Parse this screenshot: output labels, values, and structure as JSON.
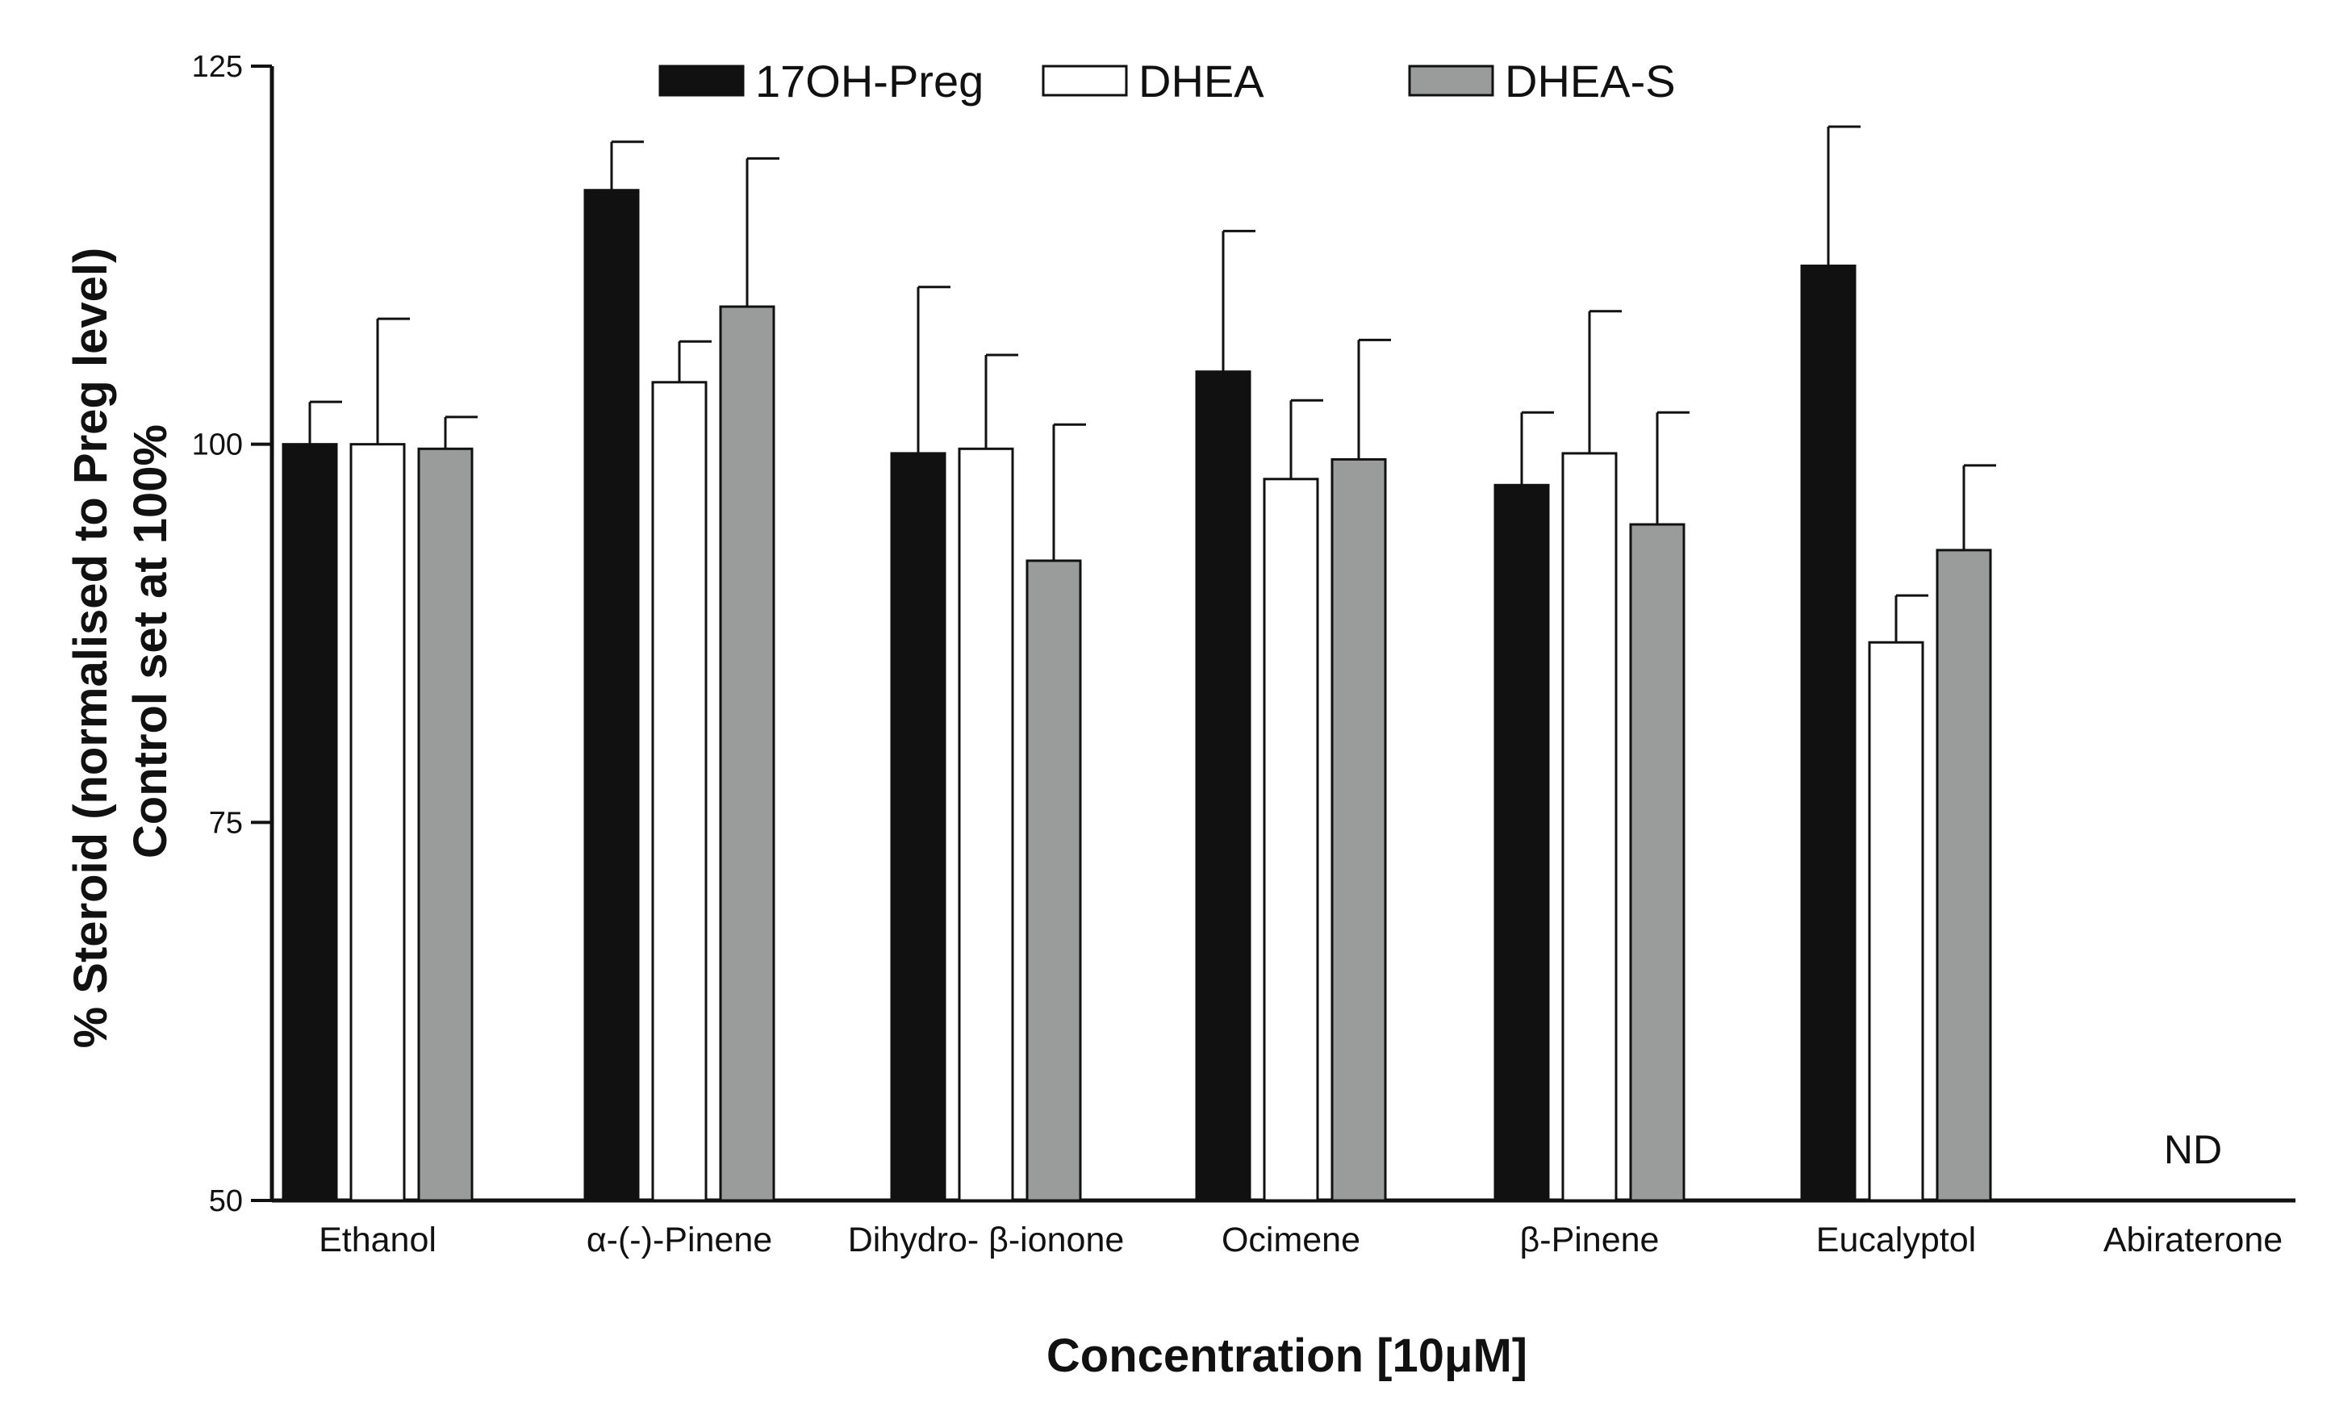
{
  "chart_data": {
    "type": "bar",
    "title": "",
    "xlabel": "Concentration [10μM]",
    "ylabel_line1": "% Steroid (normalised to Preg level)",
    "ylabel_line2": "Control set at 100%",
    "ylim": [
      50,
      125
    ],
    "yticks": [
      50,
      75,
      100,
      125
    ],
    "yticks_text": [
      "50",
      "75",
      "100",
      "125"
    ],
    "legend_position": "top",
    "categories": [
      "Ethanol",
      "α-(-)-Pinene",
      "Dihydro- β-ionone",
      "Ocimene",
      "β-Pinene",
      "Eucalyptol",
      "Abiraterone"
    ],
    "series": [
      {
        "name": "17OH-Preg",
        "color": "#111111",
        "values": [
          100,
          116.8,
          99.4,
          104.8,
          97.3,
          111.8,
          null
        ],
        "errors": [
          2.8,
          3.2,
          11.0,
          9.3,
          4.8,
          9.2,
          null
        ]
      },
      {
        "name": "DHEA",
        "color": "#ffffff",
        "values": [
          100,
          104.1,
          99.7,
          97.7,
          99.4,
          86.9,
          null
        ],
        "errors": [
          8.3,
          2.7,
          6.2,
          5.2,
          9.4,
          3.1,
          null
        ]
      },
      {
        "name": "DHEA-S",
        "color": "#9a9c9c",
        "values": [
          99.7,
          109.1,
          92.3,
          99.0,
          94.7,
          93.0,
          null
        ],
        "errors": [
          2.1,
          9.8,
          9.0,
          7.9,
          7.4,
          5.6,
          null
        ]
      }
    ],
    "annotations": [
      {
        "category": "Abiraterone",
        "text": "ND"
      }
    ]
  }
}
